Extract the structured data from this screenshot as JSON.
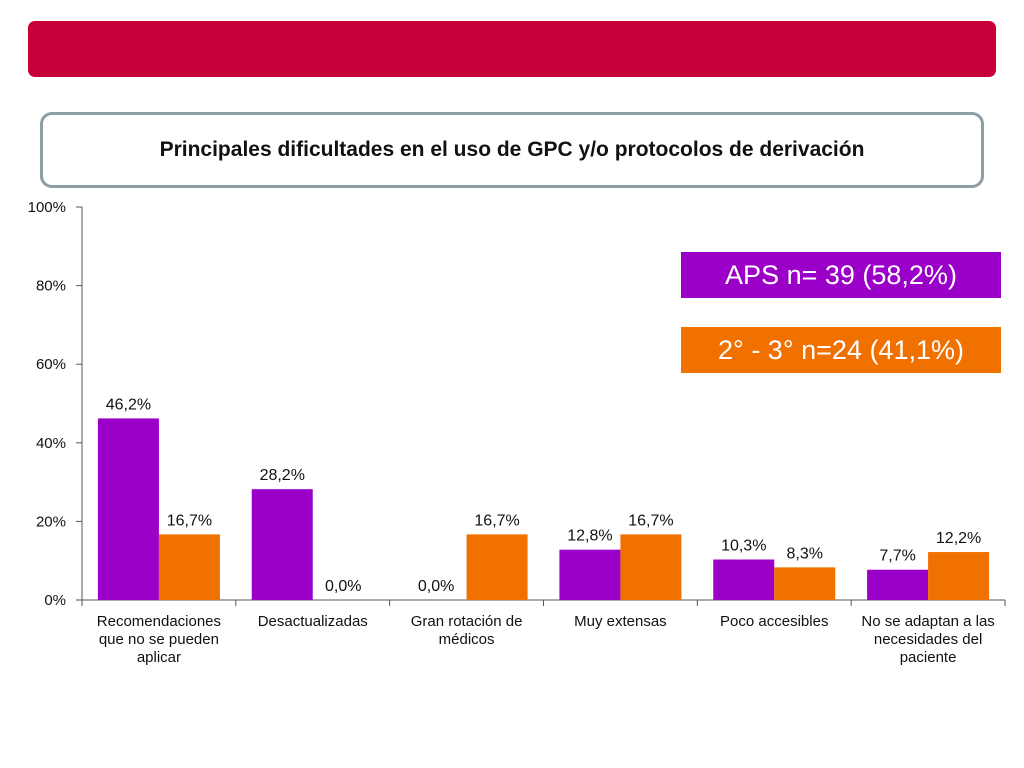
{
  "colors": {
    "header_bar": "#c8003a",
    "series_aps": "#9b00c8",
    "series_sec": "#f07000",
    "axis": "#555555",
    "text": "#111111"
  },
  "header": {},
  "chart_data": {
    "type": "bar",
    "title": "Principales dificultades en el uso de GPC y/o protocolos de derivación",
    "xlabel": "",
    "ylabel": "",
    "ylim": [
      0,
      100
    ],
    "y_ticks": [
      "0%",
      "20%",
      "40%",
      "60%",
      "80%",
      "100%"
    ],
    "y_tick_values": [
      0,
      20,
      40,
      60,
      80,
      100
    ],
    "grid": false,
    "legend_position": "top-right",
    "categories": [
      [
        "Recomendaciones",
        "que no se pueden",
        "aplicar"
      ],
      [
        "Desactualizadas"
      ],
      [
        "Gran rotación de",
        "médicos"
      ],
      [
        "Muy extensas"
      ],
      [
        "Poco accesibles"
      ],
      [
        "No se adaptan  a las",
        "necesidades del",
        "paciente"
      ]
    ],
    "series": [
      {
        "name": "APS n= 39 (58,2%)",
        "values": [
          46.2,
          28.2,
          0.0,
          12.8,
          10.3,
          7.7
        ],
        "labels": [
          "46,2%",
          "28,2%",
          "0,0%",
          "12,8%",
          "10,3%",
          "7,7%"
        ]
      },
      {
        "name": "2° - 3° n=24 (41,1%)",
        "values": [
          16.7,
          0.0,
          16.7,
          16.7,
          8.3,
          12.2
        ],
        "labels": [
          "16,7%",
          "0,0%",
          "16,7%",
          "16,7%",
          "8,3%",
          "12,2%"
        ]
      }
    ]
  }
}
